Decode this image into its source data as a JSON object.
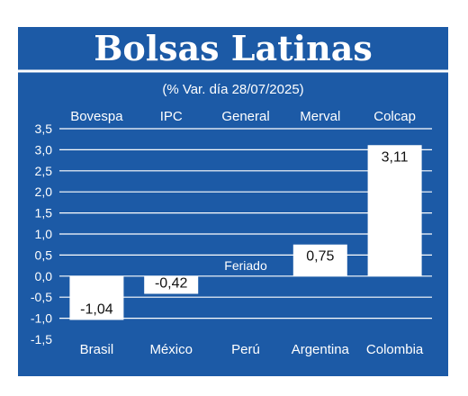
{
  "title": "Bolsas Latinas",
  "subtitle": "(% Var. día 28/07/2025)",
  "colors": {
    "background": "#1c5aa6",
    "bar": "#ffffff",
    "grid": "#ffffff",
    "text": "#ffffff",
    "label": "#111111"
  },
  "chart_data": {
    "type": "bar",
    "categories": [
      "Brasil",
      "México",
      "Perú",
      "Argentina",
      "Colombia"
    ],
    "index_names": [
      "Bovespa",
      "IPC",
      "General",
      "Merval",
      "Colcap"
    ],
    "values": [
      -1.04,
      -0.42,
      null,
      0.75,
      3.11
    ],
    "value_labels": [
      "-1,04",
      "-0,42",
      "Feriado",
      "0,75",
      "3,11"
    ],
    "ylim": [
      -1.5,
      3.5
    ],
    "yticks": [
      3.5,
      3.0,
      2.5,
      2.0,
      1.5,
      1.0,
      0.5,
      0.0,
      -0.5,
      -1.0,
      -1.5
    ],
    "ytick_labels": [
      "3,5",
      "3,0",
      "2,5",
      "2,0",
      "1,5",
      "1,0",
      "0,5",
      "0,0",
      "-0,5",
      "-1,0",
      "-1,5"
    ],
    "grid": true
  }
}
